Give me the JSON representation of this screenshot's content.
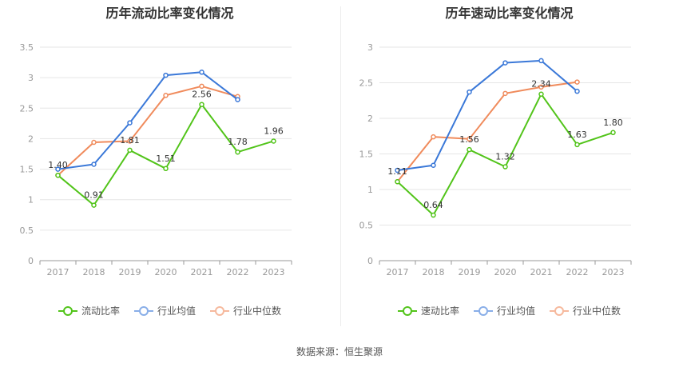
{
  "source": "数据来源：恒生聚源",
  "chart_data": [
    {
      "type": "line",
      "title": "历年流动比率变化情况",
      "categories": [
        "2017",
        "2018",
        "2019",
        "2020",
        "2021",
        "2022",
        "2023"
      ],
      "ylim": [
        0,
        3.5
      ],
      "yticks": [
        "0",
        "0.5",
        "1",
        "1.5",
        "2",
        "2.5",
        "3",
        "3.5"
      ],
      "grid": true,
      "legend_position": "bottom",
      "series": [
        {
          "name": "流动比率",
          "color": "#52c41a",
          "values": [
            1.4,
            0.91,
            1.81,
            1.51,
            2.56,
            1.78,
            1.96
          ],
          "labels": [
            "1.40",
            "0.91",
            "1.81",
            "1.51",
            "2.56",
            "1.78",
            "1.96"
          ]
        },
        {
          "name": "行业均值",
          "color": "#3a78d8",
          "values": [
            1.5,
            1.58,
            2.26,
            3.04,
            3.09,
            2.64,
            null
          ]
        },
        {
          "name": "行业中位数",
          "color": "#f08b5c",
          "values": [
            1.4,
            1.94,
            1.96,
            2.71,
            2.86,
            2.69,
            null
          ]
        }
      ]
    },
    {
      "type": "line",
      "title": "历年速动比率变化情况",
      "categories": [
        "2017",
        "2018",
        "2019",
        "2020",
        "2021",
        "2022",
        "2023"
      ],
      "ylim": [
        0,
        3
      ],
      "yticks": [
        "0",
        "0.5",
        "1",
        "1.5",
        "2",
        "2.5",
        "3"
      ],
      "grid": true,
      "legend_position": "bottom",
      "series": [
        {
          "name": "速动比率",
          "color": "#52c41a",
          "values": [
            1.11,
            0.64,
            1.56,
            1.32,
            2.34,
            1.63,
            1.8
          ],
          "labels": [
            "1.11",
            "0.64",
            "1.56",
            "1.32",
            "2.34",
            "1.63",
            "1.80"
          ]
        },
        {
          "name": "行业均值",
          "color": "#3a78d8",
          "values": [
            1.27,
            1.34,
            2.37,
            2.78,
            2.81,
            2.38,
            null
          ]
        },
        {
          "name": "行业中位数",
          "color": "#f08b5c",
          "values": [
            1.11,
            1.74,
            1.71,
            2.35,
            2.44,
            2.51,
            null
          ]
        }
      ]
    }
  ]
}
